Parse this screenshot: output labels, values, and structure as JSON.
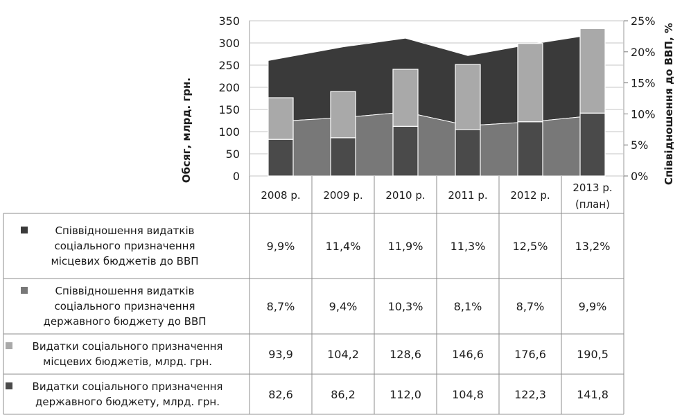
{
  "chart_data": {
    "type": "bar",
    "categories": [
      "2008 р.",
      "2009 р.",
      "2010 р.",
      "2011 р.",
      "2012 р.",
      "2013 р.|(план)"
    ],
    "y_left_label": "Обсяг, млрд. грн.",
    "y_right_label": "Співвідношення до ВВП, %",
    "y_left_ticks": [
      "350",
      "300",
      "250",
      "200",
      "150",
      "100",
      "50",
      "0"
    ],
    "y_right_ticks": [
      "25%",
      "20%",
      "15%",
      "10%",
      "5%",
      "0%"
    ],
    "ylim_left": [
      0,
      350
    ],
    "ylim_right": [
      0,
      0.25
    ],
    "series": [
      {
        "name": "Співвідношення видатків соціального призначення місцевих бюджетів до ВВП",
        "name_lines": [
          "Співвідношення видатків",
          "соціального призначення",
          "місцевих бюджетів до ВВП"
        ],
        "kind": "area-stacked",
        "axis": "right",
        "color": "#3a3a3a",
        "values": [
          0.099,
          0.114,
          0.119,
          0.113,
          0.125,
          0.132
        ],
        "labels": [
          "9,9%",
          "11,4%",
          "11,9%",
          "11,3%",
          "12,5%",
          "13,2%"
        ]
      },
      {
        "name": "Співвідношення видатків соціального призначення державного бюджету до ВВП",
        "name_lines": [
          "Співвідношення видатків",
          "соціального призначення",
          "державного бюджету до ВВП"
        ],
        "kind": "area-stacked",
        "axis": "right",
        "color": "#787878",
        "values": [
          0.087,
          0.094,
          0.103,
          0.081,
          0.087,
          0.099
        ],
        "labels": [
          "8,7%",
          "9,4%",
          "10,3%",
          "8,1%",
          "8,7%",
          "9,9%"
        ]
      },
      {
        "name": "Видатки соціального призначення місцевих бюджетів, млрд. грн.",
        "name_lines": [
          "Видатки соціального призначення",
          "місцевих бюджетів, млрд. грн."
        ],
        "kind": "bar-stacked",
        "axis": "left",
        "color": "#a9a9a9",
        "values": [
          93.9,
          104.2,
          128.6,
          146.6,
          176.6,
          190.5
        ],
        "labels": [
          "93,9",
          "104,2",
          "128,6",
          "146,6",
          "176,6",
          "190,5"
        ]
      },
      {
        "name": "Видатки соціального призначення державного бюджету, млрд. грн.",
        "name_lines": [
          "Видатки соціального призначення",
          "державного бюджету, млрд. грн."
        ],
        "kind": "bar-stacked",
        "axis": "left",
        "color": "#4a4a4a",
        "values": [
          82.6,
          86.2,
          112.0,
          104.8,
          122.3,
          141.8
        ],
        "labels": [
          "82,6",
          "86,2",
          "112,0",
          "104,8",
          "122,3",
          "141,8"
        ]
      }
    ]
  }
}
